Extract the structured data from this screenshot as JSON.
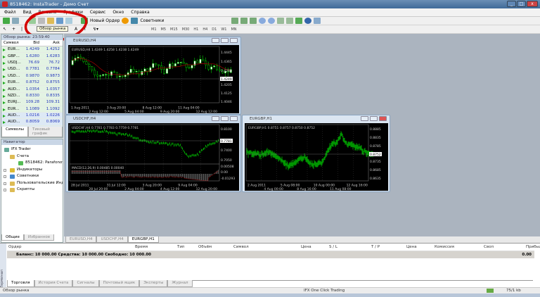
{
  "window": {
    "title": "8518462: InstaTrader - Демо Счет"
  },
  "menu": [
    "Файл",
    "Вид",
    "Вставка",
    "Графики",
    "Сервис",
    "Окно",
    "Справка"
  ],
  "toolbar": {
    "new_order": "Новый Ордер",
    "experts": "Советники",
    "tooltip": "Обзор рынка",
    "timeframes": [
      "M1",
      "M5",
      "M15",
      "M30",
      "H1",
      "H4",
      "D1",
      "W1",
      "MN"
    ]
  },
  "market_watch": {
    "title": "Обзор рынка: 23:59:40",
    "columns": [
      "Символ",
      "Bid",
      "Ask"
    ],
    "rows": [
      [
        "EURUSD",
        "1.4249",
        "1.4252"
      ],
      [
        "GBPUSD",
        "1.6280",
        "1.6283"
      ],
      [
        "USDJPY",
        "76.69",
        "76.72"
      ],
      [
        "USDCHF",
        "0.7781",
        "0.7784"
      ],
      [
        "USDCAD",
        "0.9870",
        "0.9873"
      ],
      [
        "EURGBP",
        "0.8752",
        "0.8755"
      ],
      [
        "AUDUSD",
        "1.0354",
        "1.0357"
      ],
      [
        "NZDUSD",
        "0.8330",
        "0.8335"
      ],
      [
        "EURJPY",
        "109.28",
        "109.31"
      ],
      [
        "EURCHF",
        "1.1089",
        "1.1092"
      ],
      [
        "AUDCAD",
        "1.0216",
        "1.0226"
      ],
      [
        "AUDCHF",
        "0.8059",
        "0.8069"
      ],
      [
        "AUDJPY",
        "79.35",
        "79.45"
      ]
    ],
    "tabs": [
      "Символы",
      "Тиковый график"
    ]
  },
  "navigator": {
    "title": "Навигатор",
    "items": [
      "IFX Trader",
      "Счета",
      "8518462: Parafonov E",
      "Индикаторы",
      "Советники",
      "Пользовательские Индикаторы",
      "Скрипты"
    ],
    "tabs": [
      "Общие",
      "Избранное"
    ]
  },
  "charts": {
    "eurusd": {
      "title": "EURUSD,H4",
      "info": "EURUSD,H4  1.4249 1.4258 1.4238 1.4249",
      "prices": [
        "1.4445",
        "1.4365",
        "1.4285",
        "1.4205",
        "1.4125",
        "1.4046"
      ],
      "current": "1.4249",
      "times": [
        "1 Aug 2011",
        "2 Aug 12:00",
        "3 Aug 20:00",
        "5 Aug 04:00",
        "8 Aug 12:00",
        "9 Aug 20:00",
        "11 Aug 04:00",
        "12 Aug 12:00"
      ]
    },
    "usdchf": {
      "title": "USDCHF,H4",
      "info": "USDCHF,H4  0.7781 0.7783 0.7759 0.7781",
      "prices": [
        "0.8100",
        "0.7400",
        "0.7050"
      ],
      "current": "0.7781",
      "indicator": "MACD(12,26,9) 0.00485 0.00040",
      "ind_levels": [
        "0.00508",
        "0.00",
        "-0.01293"
      ],
      "times": [
        "28 Jul 2011",
        "28 Jul 20:00",
        "31 Jul 12:00",
        "2 Aug 04:00",
        "3 Aug 20:00",
        "4 Aug 12:00",
        "9 Aug 04:00",
        "12 Aug 20:00"
      ]
    },
    "eurgbp": {
      "title": "EURGBP,H1",
      "info": "EURGBP,H1  0.8751 0.8757 0.8750 0.8752",
      "prices": [
        "0.8885",
        "0.8835",
        "0.8785",
        "0.8735",
        "0.8685",
        "0.8635"
      ],
      "current": "0.8752",
      "times": [
        "2 Aug 2011",
        "4 Aug 00:00",
        "5 Aug 08:00",
        "8 Aug 16:00",
        "10 Aug 00:00",
        "11 Aug 08:00",
        "12 Aug 16:00"
      ]
    },
    "tabs": [
      "EURUSD,H4",
      "USDCHF,H4",
      "EURGBP,H1"
    ]
  },
  "terminal": {
    "side_label": "Терминал",
    "columns": [
      "Ордер",
      "Время",
      "Тип",
      "Объём",
      "Символ",
      "Цена",
      "S / L",
      "T / P",
      "Цена",
      "Комиссия",
      "Своп",
      "Прибыль"
    ],
    "balance": "Баланс: 10 000.00  Средства: 10 000.00  Свободно: 10 000.00",
    "profit": "0.00",
    "tabs": [
      "Торговля",
      "История Счета",
      "Сигналы",
      "Почтовый ящик",
      "Эксперты",
      "Журнал"
    ]
  },
  "status": {
    "left": "Обзор рынка",
    "profile": "IFX One Click Trading",
    "traffic": "75/1 kb"
  },
  "colors": {
    "bull": "#00c800",
    "bear": "#00c800",
    "ma": "#a00000",
    "annotation": "#d40000"
  }
}
